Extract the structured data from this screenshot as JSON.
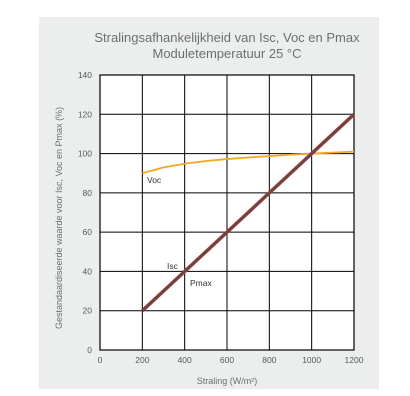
{
  "chart_data": {
    "type": "line",
    "title_line1": "Stralingsafhankelijkheid van Isc, Voc en Pmax",
    "title_line2": "Moduletemperatuur 25 °C",
    "xlabel": "Straling (W/m²)",
    "ylabel": "Gestandaardiseerde waarde voor Isc, Voc en Pmax (%)",
    "xlim": [
      0,
      1200
    ],
    "ylim": [
      0,
      140
    ],
    "xticks": [
      0,
      200,
      400,
      600,
      800,
      1000,
      1200
    ],
    "yticks": [
      0,
      20,
      40,
      60,
      80,
      100,
      120,
      140
    ],
    "grid": true,
    "series": [
      {
        "name": "Voc",
        "color": "#f5a623",
        "x": [
          200,
          300,
          400,
          500,
          600,
          700,
          800,
          900,
          1000,
          1100,
          1200
        ],
        "y": [
          90,
          93,
          94.8,
          96.2,
          97.2,
          98,
          98.7,
          99.4,
          100,
          100.5,
          101
        ]
      },
      {
        "name": "Isc",
        "color": "#c0392b",
        "x": [
          200,
          1200
        ],
        "y": [
          20,
          120
        ]
      },
      {
        "name": "Pmax",
        "color": "#5a4a4c",
        "x": [
          200,
          1200
        ],
        "y": [
          20,
          120
        ]
      }
    ]
  }
}
